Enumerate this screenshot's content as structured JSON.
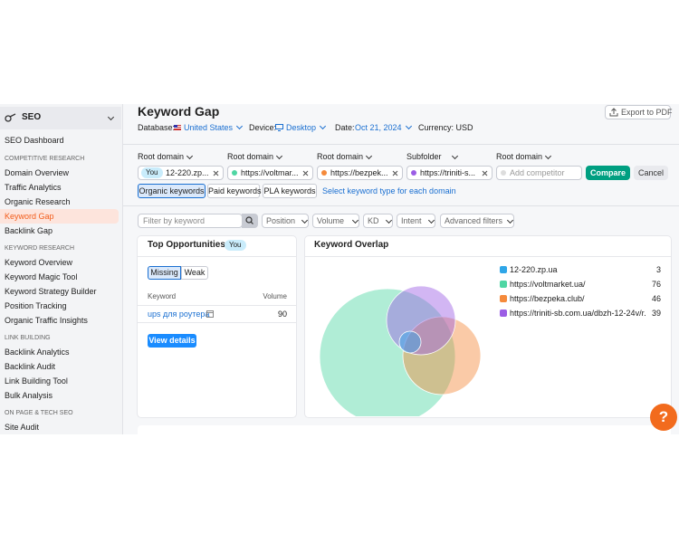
{
  "sidebar": {
    "title": "SEO",
    "dashboard": "SEO Dashboard",
    "groups": [
      {
        "heading": "COMPETITIVE RESEARCH",
        "items": [
          "Domain Overview",
          "Traffic Analytics",
          "Organic Research",
          "Keyword Gap",
          "Backlink Gap"
        ]
      },
      {
        "heading": "KEYWORD RESEARCH",
        "items": [
          "Keyword Overview",
          "Keyword Magic Tool",
          "Keyword Strategy Builder",
          "Position Tracking",
          "Organic Traffic Insights"
        ]
      },
      {
        "heading": "LINK BUILDING",
        "items": [
          "Backlink Analytics",
          "Backlink Audit",
          "Link Building Tool",
          "Bulk Analysis"
        ]
      },
      {
        "heading": "ON PAGE & TECH SEO",
        "items": [
          "Site Audit"
        ]
      }
    ]
  },
  "header": {
    "title": "Keyword Gap",
    "export": "Export to PDF",
    "database_label": "Database:",
    "database": "United States",
    "device_label": "Device:",
    "device": "Desktop",
    "date_label": "Date:",
    "date": "Oct 21, 2024",
    "currency": "Currency: USD"
  },
  "domains": [
    {
      "type": "Root domain",
      "value": "12-220.zp...",
      "badge": "You"
    },
    {
      "type": "Root domain",
      "value": "https://voltmar..."
    },
    {
      "type": "Root domain",
      "value": "https://bezpek..."
    },
    {
      "type": "Subfolder",
      "value": "https://triniti-s..."
    },
    {
      "type": "Root domain",
      "placeholder": "Add competitor"
    }
  ],
  "compare": "Compare",
  "cancel": "Cancel",
  "tabs": [
    "Organic keywords",
    "Paid keywords",
    "PLA keywords"
  ],
  "tabs_link": "Select keyword type for each domain",
  "filters": {
    "search": "Filter by keyword",
    "dropdowns": [
      "Position",
      "Volume",
      "KD",
      "Intent",
      "Advanced filters"
    ]
  },
  "top_opportunities": {
    "title": "Top Opportunities",
    "badge": "You",
    "toggle": [
      "Missing",
      "Weak"
    ],
    "columns": [
      "Keyword",
      "Volume"
    ],
    "rows": [
      [
        "ups для роутера",
        90
      ]
    ],
    "button": "View details"
  },
  "keyword_overlap": {
    "title": "Keyword Overlap",
    "legend": [
      {
        "name": "12-220.zp.ua",
        "value": 3,
        "color": "#2fa6e8"
      },
      {
        "name": "https://voltmarket.ua/",
        "value": 76,
        "color": "#4fd6a3"
      },
      {
        "name": "https://bezpeka.club/",
        "value": 46,
        "color": "#f58a3b"
      },
      {
        "name": "https://triniti-sb.com.ua/dbzh-12-24v/r...",
        "value": 39,
        "color": "#9b5de5"
      }
    ]
  },
  "help": "?"
}
